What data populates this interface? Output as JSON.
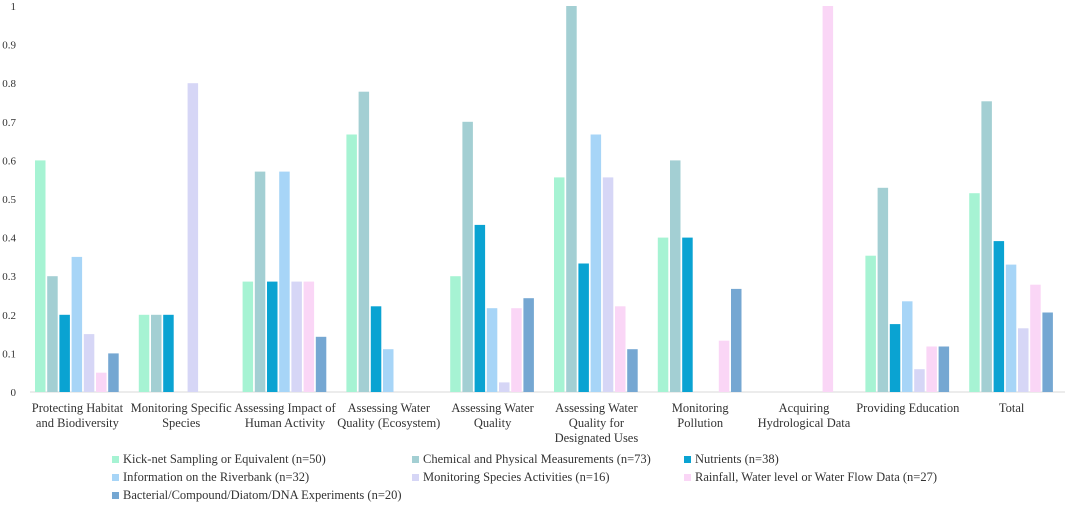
{
  "chart_data": {
    "type": "bar",
    "categories": [
      [
        "Protecting Habitat",
        "and Biodiversity"
      ],
      [
        "Monitoring Specific",
        "Species"
      ],
      [
        "Assessing Impact of",
        "Human Activity"
      ],
      [
        "Assessing Water",
        "Quality (Ecosystem)"
      ],
      [
        "Assessing Water",
        "Quality"
      ],
      [
        "Assessing Water",
        "Quality for",
        "Designated Uses"
      ],
      [
        "Monitoring",
        "Pollution"
      ],
      [
        "Acquiring",
        "Hydrological Data"
      ],
      [
        "Providing Education"
      ],
      [
        "Total"
      ]
    ],
    "ylim": [
      0,
      1
    ],
    "yticks": [
      "0",
      "0.1",
      "0.2",
      "0.3",
      "0.4",
      "0.5",
      "0.6",
      "0.7",
      "0.8",
      "0.9",
      "1"
    ],
    "series": [
      {
        "name": "Kick-net Sampling or Equivalent (n=50)",
        "color": "#a6f3d3",
        "values": [
          0.6,
          0.2,
          0.286,
          0.667,
          0.3,
          0.556,
          0.4,
          0,
          0.353,
          0.515
        ]
      },
      {
        "name": "Chemical and Physical Measurements (n=73)",
        "color": "#a3cfd3",
        "values": [
          0.3,
          0.2,
          0.571,
          0.778,
          0.7,
          1.0,
          0.6,
          0,
          0.529,
          0.753
        ]
      },
      {
        "name": "Nutrients (n=38)",
        "color": "#0aa3d2",
        "values": [
          0.2,
          0.2,
          0.286,
          0.222,
          0.433,
          0.333,
          0.4,
          0,
          0.176,
          0.391
        ]
      },
      {
        "name": "Information on the Riverbank (n=32)",
        "color": "#a7d5f7",
        "values": [
          0.35,
          0,
          0.571,
          0.111,
          0.217,
          0.667,
          0,
          0,
          0.235,
          0.33
        ]
      },
      {
        "name": "Monitoring Species Activities (n=16)",
        "color": "#d6d6f6",
        "values": [
          0.15,
          0.8,
          0.286,
          0,
          0.025,
          0.556,
          0,
          0,
          0.059,
          0.165
        ]
      },
      {
        "name": "Rainfall, Water level or Water Flow Data (n=27)",
        "color": "#fad6f6",
        "values": [
          0.05,
          0,
          0.286,
          0,
          0.217,
          0.222,
          0.133,
          1.0,
          0.118,
          0.278
        ]
      },
      {
        "name": "Bacterial/Compound/Diatom/DNA Experiments (n=20)",
        "color": "#75a7d2",
        "values": [
          0.1,
          0,
          0.143,
          0,
          0.243,
          0.111,
          0.267,
          0,
          0.118,
          0.206
        ]
      }
    ],
    "xlabel": "",
    "ylabel": "",
    "grid": false,
    "legend": "bottom"
  }
}
